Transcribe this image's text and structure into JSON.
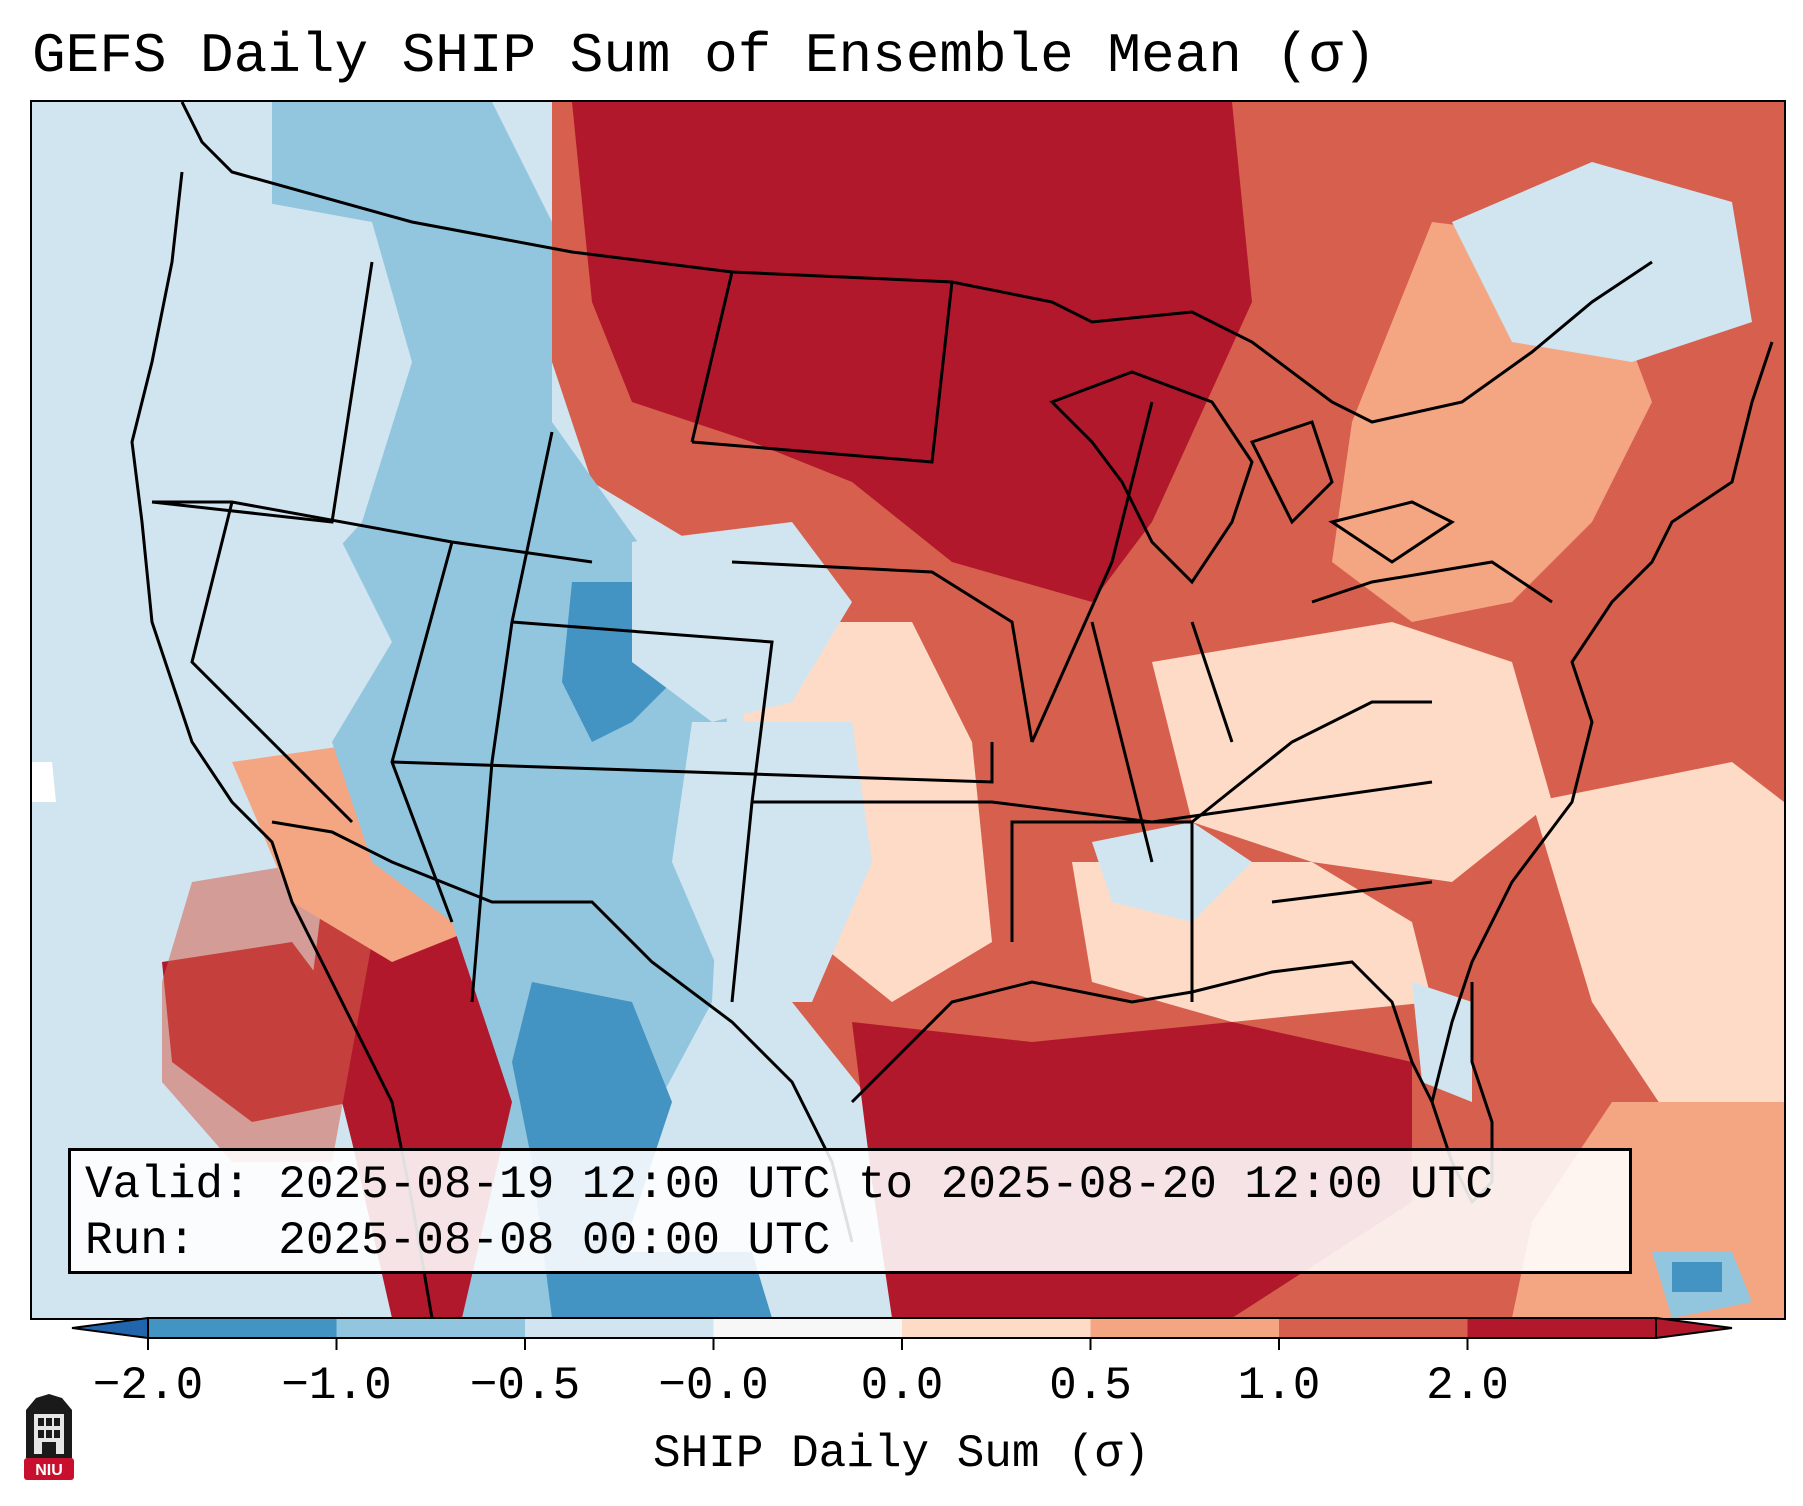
{
  "title": "GEFS Daily SHIP Sum of Ensemble Mean (σ)",
  "info": {
    "valid_label": "Valid:",
    "valid_value": "2025-08-19 12:00 UTC to 2025-08-20 12:00 UTC",
    "run_label": "Run:",
    "run_value": "2025-08-08 00:00 UTC"
  },
  "colorbar": {
    "label": "SHIP Daily Sum (σ)",
    "ticks": [
      "−2.0",
      "−1.0",
      "−0.5",
      "−0.0",
      "0.0",
      "0.5",
      "1.0",
      "2.0"
    ],
    "colors": [
      "#4393c3",
      "#92c5de",
      "#d1e5f0",
      "#f7f7f7",
      "#fddbc7",
      "#f4a582",
      "#d6604d",
      "#b2182b"
    ],
    "extend_low_color": "#2166ac",
    "extend_high_color": "#b2182b"
  },
  "map": {
    "projection": "Lambert Conformal",
    "region": "Contiguous United States",
    "ocean_color": "#d1e5f0"
  },
  "logo": {
    "text": "NIU",
    "color": "#c8102e"
  }
}
